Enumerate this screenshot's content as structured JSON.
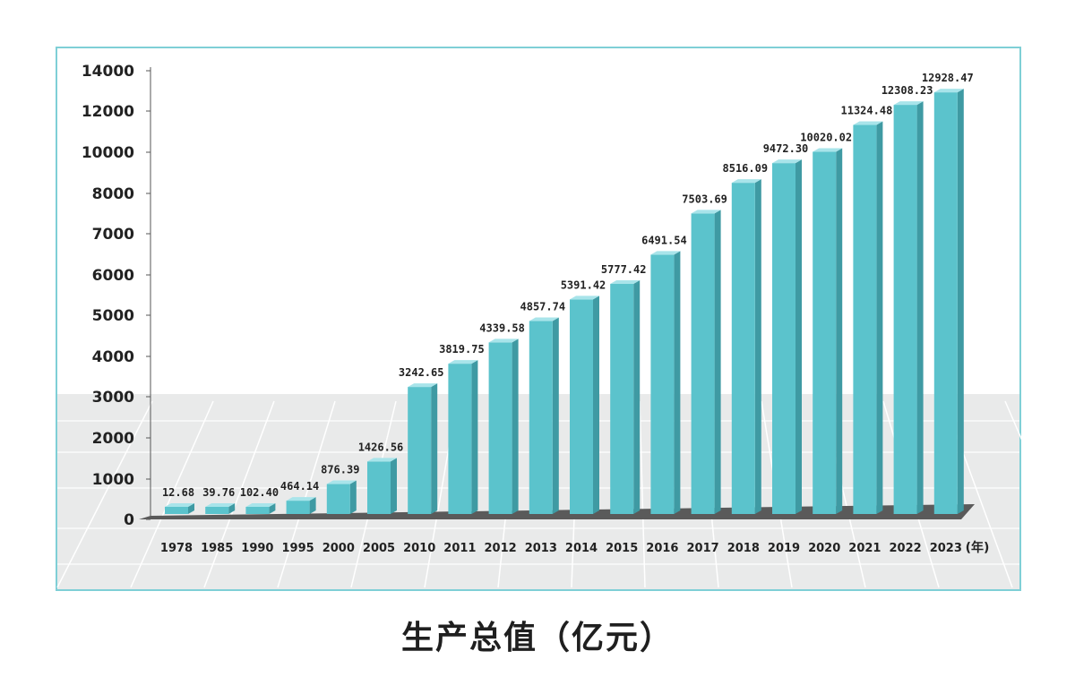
{
  "chart_data": {
    "type": "bar",
    "title": "生产总值（亿元）",
    "x_unit": "(年)",
    "categories": [
      "1978",
      "1985",
      "1990",
      "1995",
      "2000",
      "2005",
      "2010",
      "2011",
      "2012",
      "2013",
      "2014",
      "2015",
      "2016",
      "2017",
      "2018",
      "2019",
      "2020",
      "2021",
      "2022",
      "2023"
    ],
    "values": [
      12.68,
      39.76,
      102.4,
      464.14,
      876.39,
      1426.56,
      3242.65,
      3819.75,
      4339.58,
      4857.74,
      5391.42,
      5777.42,
      6491.54,
      7503.69,
      8516.09,
      9472.3,
      10020.02,
      11324.48,
      12308.23,
      12928.47
    ],
    "value_labels": [
      "12.68",
      "39.76",
      "102.40",
      "464.14",
      "876.39",
      "1426.56",
      "3242.65",
      "3819.75",
      "4339.58",
      "4857.74",
      "5391.42",
      "5777.42",
      "6491.54",
      "7503.69",
      "8516.09",
      "9472.30",
      "10020.02",
      "11324.48",
      "12308.23",
      "12928.47"
    ],
    "y_ticks": [
      0,
      1000,
      2000,
      3000,
      4000,
      5000,
      6000,
      7000,
      8000,
      10000,
      12000,
      14000
    ],
    "ylim": [
      0,
      14000
    ],
    "grid": true,
    "colors": {
      "bar_front": "#5bc3cc",
      "bar_side": "#3f9aa3",
      "bar_top": "#a8e4ea",
      "floor": "#5a5a5a",
      "backdrop": "#e9eaea"
    }
  }
}
